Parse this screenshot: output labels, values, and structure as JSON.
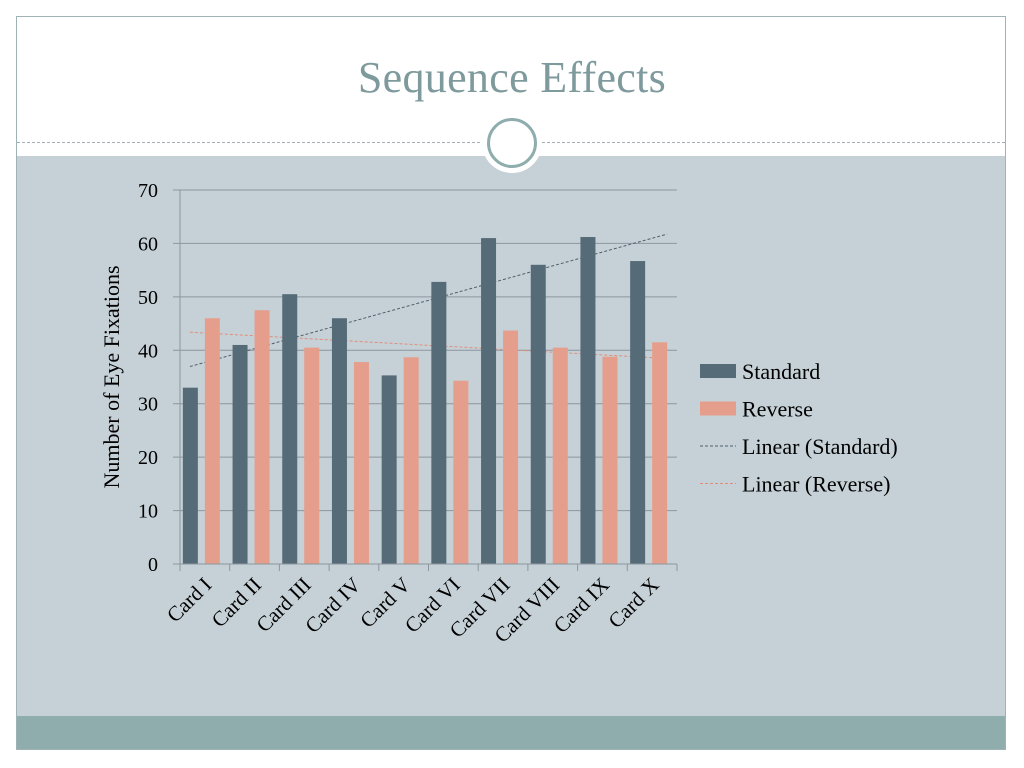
{
  "slide": {
    "title": "Sequence Effects"
  },
  "colors": {
    "standard": "#566b78",
    "reverse": "#e59e8c",
    "panel": "#c6d1d7",
    "accent": "#8fadad",
    "title": "#7e9a9c"
  },
  "chart_data": {
    "type": "bar",
    "title": "",
    "xlabel": "",
    "ylabel": "Number of Eye Fixations",
    "ylim": [
      0,
      70
    ],
    "yticks": [
      "0",
      "10",
      "20",
      "30",
      "40",
      "50",
      "60",
      "70"
    ],
    "grid": true,
    "legend": "right",
    "categories": [
      "Card I",
      "Card II",
      "Card III",
      "Card IV",
      "Card V",
      "Card VI",
      "Card VII",
      "Card VIII",
      "Card IX",
      "Card X"
    ],
    "series": [
      {
        "name": "Standard",
        "values": [
          33,
          41,
          50.5,
          46,
          35.3,
          52.8,
          61,
          56,
          61.2,
          56.7
        ]
      },
      {
        "name": "Reverse",
        "values": [
          46,
          47.5,
          40.5,
          37.8,
          38.7,
          34.3,
          43.7,
          40.5,
          38.8,
          41.5
        ]
      }
    ],
    "trendlines": [
      {
        "name": "Linear (Standard)",
        "series": "Standard",
        "type": "linear"
      },
      {
        "name": "Linear (Reverse)",
        "series": "Reverse",
        "type": "linear"
      }
    ]
  }
}
